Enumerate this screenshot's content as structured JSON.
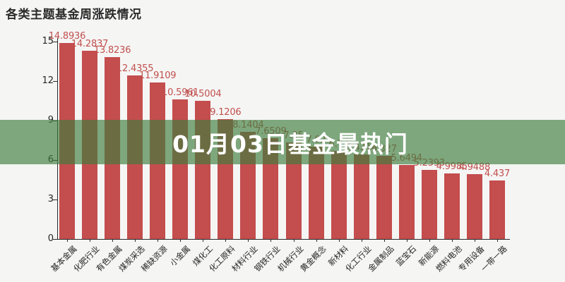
{
  "page": {
    "background": "#f5f5f4"
  },
  "title": {
    "text": "各类主题基金周涨跌情况"
  },
  "overlay_banner": {
    "text": "01月03日基金最热门",
    "text_color": "#ffffff",
    "background": "rgba(62,125,62,0.65)"
  },
  "chart_data": {
    "type": "bar",
    "title": "各类主题基金周涨跌情况",
    "categories": [
      "基本金属",
      "化肥行业",
      "有色金属",
      "煤炭采选",
      "稀缺资源",
      "小金属",
      "煤化工",
      "化工原料",
      "材料行业",
      "钢铁行业",
      "机械行业",
      "黄金概念",
      "新材料",
      "化工行业",
      "金属制品",
      "蓝宝石",
      "新能源",
      "燃料电池",
      "专用设备",
      "一带一路"
    ],
    "values": [
      14.8936,
      14.2837,
      13.8236,
      12.4355,
      11.9109,
      10.5961,
      10.5004,
      9.1206,
      8.1404,
      7.6509,
      7.35,
      7.02,
      6.72,
      6.4316,
      6.327,
      5.6494,
      5.2393,
      4.9985,
      4.9488,
      4.437
    ],
    "value_labels": [
      "14.8936",
      "14.2837",
      "13.8236",
      "12.4355",
      "11.9109",
      "10.5961",
      "10.5004",
      "9.1206",
      "8.1404",
      "7.6509",
      "7.35",
      "7.02",
      "6.72",
      "6.4316",
      "6.327",
      "5.6494",
      "5.2393",
      "4.9985",
      "4.9488",
      "4.437"
    ],
    "yticks": [
      0,
      3,
      6,
      9,
      12,
      15
    ],
    "ylim": [
      0,
      15
    ],
    "xlabel": "",
    "ylabel": "",
    "grid": false,
    "legend": "none",
    "bar_color": "#c44d4d",
    "value_label_color": "#c0504d",
    "axis_color": "#2b2b2b"
  }
}
